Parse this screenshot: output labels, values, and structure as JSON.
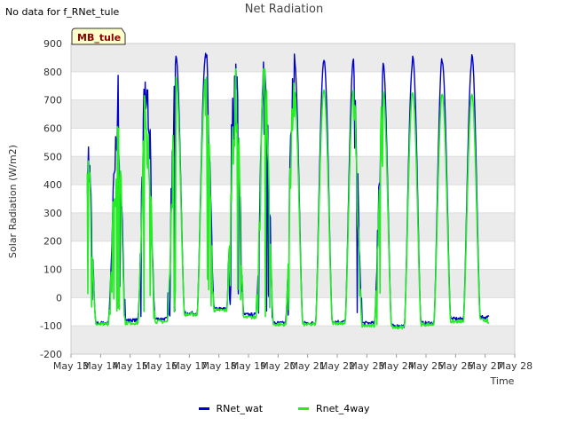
{
  "header": {
    "no_data": "No data for f_RNet_tule",
    "title": "Net Radiation"
  },
  "badge": "MB_tule",
  "colors": {
    "RNet_wat": "#0000cc",
    "Rnet_4way": "#22ee22",
    "band": "#ebebeb",
    "grid": "#dddddd"
  },
  "chart_data": {
    "type": "line",
    "title": "Net Radiation",
    "xlabel": "Time",
    "ylabel": "Solar Radiation (W/m2)",
    "xlim": [
      "May 13",
      "May 28"
    ],
    "ylim": [
      -200,
      900
    ],
    "x_tick_labels": [
      "May 13",
      "May 14",
      "May 15",
      "May 16",
      "May 17",
      "May 18",
      "May 19",
      "May 20",
      "May 21",
      "May 22",
      "May 23",
      "May 24",
      "May 25",
      "May 26",
      "May 27",
      "May 28"
    ],
    "y_ticks": [
      -200,
      -100,
      0,
      100,
      200,
      300,
      400,
      500,
      600,
      700,
      800,
      900
    ],
    "grid": true,
    "legend_position": "bottom",
    "series": [
      {
        "name": "RNet_wat",
        "daily": [
          {
            "day": "May 13",
            "night": -90,
            "peak": 570,
            "noisy": true
          },
          {
            "day": "May 14",
            "night": -80,
            "peak": 815,
            "noisy": true
          },
          {
            "day": "May 15",
            "night": -75,
            "peak": 825,
            "noisy": true
          },
          {
            "day": "May 16",
            "night": -55,
            "peak": 855,
            "noisy": false
          },
          {
            "day": "May 17",
            "night": -40,
            "peak": 865,
            "noisy": true
          },
          {
            "day": "May 18",
            "night": -60,
            "peak": 860,
            "noisy": true
          },
          {
            "day": "May 19",
            "night": -90,
            "peak": 865,
            "noisy": true
          },
          {
            "day": "May 20",
            "night": -90,
            "peak": 840,
            "noisy": false
          },
          {
            "day": "May 21",
            "night": -85,
            "peak": 845,
            "noisy": false
          },
          {
            "day": "May 22",
            "night": -90,
            "peak": 785,
            "noisy": true
          },
          {
            "day": "May 23",
            "night": -100,
            "peak": 830,
            "noisy": false
          },
          {
            "day": "May 24",
            "night": -90,
            "peak": 855,
            "noisy": false
          },
          {
            "day": "May 25",
            "night": -75,
            "peak": 835,
            "noisy": false
          },
          {
            "day": "May 26",
            "night": -70,
            "peak": 860,
            "noisy": false
          }
        ],
        "end_value": -65
      },
      {
        "name": "Rnet_4way",
        "daily": [
          {
            "day": "May 13",
            "night": -95,
            "peak": 520,
            "noisy": true
          },
          {
            "day": "May 14",
            "night": -90,
            "peak": 730,
            "noisy": true
          },
          {
            "day": "May 15",
            "night": -85,
            "peak": 735,
            "noisy": true
          },
          {
            "day": "May 16",
            "night": -60,
            "peak": 780,
            "noisy": false
          },
          {
            "day": "May 17",
            "night": -45,
            "peak": 780,
            "noisy": true
          },
          {
            "day": "May 18",
            "night": -70,
            "peak": 810,
            "noisy": true
          },
          {
            "day": "May 19",
            "night": -95,
            "peak": 780,
            "noisy": true
          },
          {
            "day": "May 20",
            "night": -95,
            "peak": 735,
            "noisy": false
          },
          {
            "day": "May 21",
            "night": -90,
            "peak": 735,
            "noisy": false
          },
          {
            "day": "May 22",
            "night": -100,
            "peak": 700,
            "noisy": true
          },
          {
            "day": "May 23",
            "night": -105,
            "peak": 730,
            "noisy": false
          },
          {
            "day": "May 24",
            "night": -95,
            "peak": 725,
            "noisy": false
          },
          {
            "day": "May 25",
            "night": -85,
            "peak": 720,
            "noisy": false
          },
          {
            "day": "May 26",
            "night": -80,
            "peak": 720,
            "noisy": false
          }
        ],
        "end_value": -90
      }
    ]
  }
}
